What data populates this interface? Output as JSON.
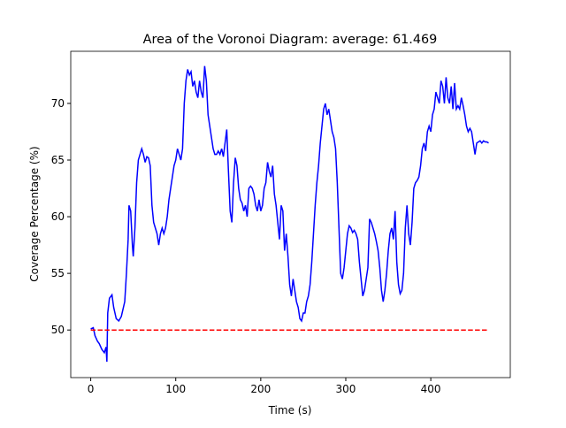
{
  "chart_data": {
    "type": "line",
    "title": "Area of the Voronoi Diagram: average: 61.469",
    "xlabel": "Time (s)",
    "ylabel": "Coverage Percentage (%)",
    "xlim": [
      -23.5,
      493.5
    ],
    "ylim": [
      45.8,
      74.6
    ],
    "xticks": [
      0,
      100,
      200,
      300,
      400
    ],
    "yticks": [
      50,
      55,
      60,
      65,
      70
    ],
    "series": [
      {
        "color": "#0000ff",
        "linestyle": "solid",
        "x": [
          0,
          3,
          5,
          8,
          10,
          13,
          16,
          18,
          19,
          20,
          22,
          25,
          27,
          30,
          33,
          36,
          40,
          42,
          44,
          45,
          47,
          49,
          50,
          52,
          54,
          56,
          58,
          60,
          62,
          64,
          66,
          68,
          70,
          72,
          74,
          76,
          78,
          80,
          82,
          84,
          86,
          88,
          90,
          92,
          94,
          96,
          98,
          100,
          102,
          104,
          106,
          108,
          110,
          112,
          114,
          116,
          118,
          120,
          122,
          124,
          126,
          128,
          130,
          132,
          134,
          136,
          138,
          140,
          142,
          144,
          146,
          148,
          150,
          152,
          154,
          156,
          158,
          160,
          162,
          164,
          166,
          168,
          170,
          172,
          174,
          176,
          178,
          180,
          182,
          184,
          186,
          188,
          190,
          192,
          194,
          196,
          198,
          200,
          202,
          204,
          206,
          208,
          210,
          212,
          214,
          216,
          218,
          220,
          222,
          224,
          226,
          228,
          230,
          232,
          234,
          236,
          238,
          240,
          242,
          244,
          246,
          248,
          250,
          252,
          254,
          256,
          258,
          260,
          262,
          264,
          266,
          268,
          270,
          272,
          274,
          276,
          278,
          280,
          282,
          284,
          286,
          288,
          290,
          292,
          294,
          296,
          298,
          300,
          302,
          304,
          306,
          308,
          310,
          312,
          314,
          316,
          318,
          320,
          322,
          324,
          326,
          328,
          330,
          332,
          334,
          336,
          338,
          340,
          342,
          344,
          346,
          348,
          350,
          352,
          354,
          356,
          358,
          360,
          362,
          364,
          366,
          368,
          370,
          372,
          374,
          376,
          378,
          380,
          382,
          384,
          386,
          388,
          390,
          392,
          394,
          396,
          398,
          400,
          402,
          404,
          406,
          408,
          410,
          412,
          414,
          416,
          418,
          420,
          422,
          424,
          426,
          428,
          430,
          432,
          434,
          436,
          438,
          440,
          442,
          444,
          446,
          448,
          450,
          452,
          454,
          456,
          458,
          460,
          462,
          464,
          466,
          468
        ],
        "values": [
          50.1,
          50.2,
          49.5,
          49.0,
          48.8,
          48.3,
          48.0,
          48.5,
          47.2,
          51.5,
          52.8,
          53.1,
          52.0,
          51.0,
          50.8,
          51.2,
          52.5,
          55,
          58,
          61,
          60.5,
          57.5,
          56.5,
          59,
          63,
          65,
          65.5,
          66,
          65.5,
          64.8,
          65.3,
          65.2,
          64.5,
          61,
          59.5,
          59,
          58.5,
          57.5,
          58.5,
          59,
          58.5,
          59,
          60,
          61.5,
          62.5,
          63.5,
          64.5,
          65,
          66,
          65.5,
          65,
          66,
          70,
          72,
          73,
          72.5,
          72.8,
          71.5,
          72,
          71,
          70.5,
          72,
          71,
          70.5,
          73.3,
          72,
          69,
          68,
          67,
          66,
          65.5,
          65.5,
          65.8,
          65.5,
          66,
          65.3,
          66.5,
          67.7,
          64,
          60.5,
          59.5,
          63,
          65.2,
          64.5,
          62.5,
          61.5,
          61.2,
          60.5,
          61,
          60,
          62.5,
          62.7,
          62.5,
          62,
          61,
          60.5,
          61.5,
          60.5,
          61,
          62.5,
          63,
          64.8,
          64,
          63.5,
          64.5,
          62,
          61,
          59.5,
          58,
          61,
          60.5,
          57,
          58.5,
          56.5,
          54,
          53,
          54.5,
          53.5,
          52.5,
          52,
          51,
          50.8,
          51.5,
          51.5,
          52.5,
          53,
          54,
          56,
          58.5,
          61,
          63,
          64.5,
          66.5,
          68,
          69.5,
          70,
          69,
          69.5,
          68.5,
          67.5,
          67,
          66,
          63,
          59,
          55,
          54.5,
          55.5,
          57,
          58.5,
          59.2,
          59,
          58.6,
          58.8,
          58.5,
          58,
          56,
          54.5,
          53,
          53.5,
          54.5,
          55.5,
          59.8,
          59.5,
          59,
          58.5,
          57.8,
          57,
          55.5,
          53.5,
          52.5,
          53.5,
          55,
          57,
          58.5,
          59,
          58,
          60.5,
          56,
          54,
          53.2,
          53.5,
          55,
          59,
          61,
          58.5,
          57.5,
          59.5,
          62.5,
          63,
          63.2,
          63.5,
          64.5,
          66,
          66.5,
          65.8,
          67.5,
          68,
          67.5,
          69,
          69.5,
          71,
          70.5,
          70,
          72,
          71.5,
          70,
          72.3,
          70.5,
          70,
          71.5,
          69.5,
          71.8,
          69.5,
          69.8,
          69.5,
          70.5,
          69.8,
          69,
          68,
          67.5,
          67.8,
          67.5,
          66.5,
          65.5,
          66.5,
          66.6,
          66.7,
          66.5,
          66.7,
          66.6,
          66.6,
          66.5
        ]
      },
      {
        "color": "#ff0000",
        "linestyle": "dashed",
        "x": [
          0,
          468
        ],
        "values": [
          50,
          50
        ]
      }
    ]
  }
}
